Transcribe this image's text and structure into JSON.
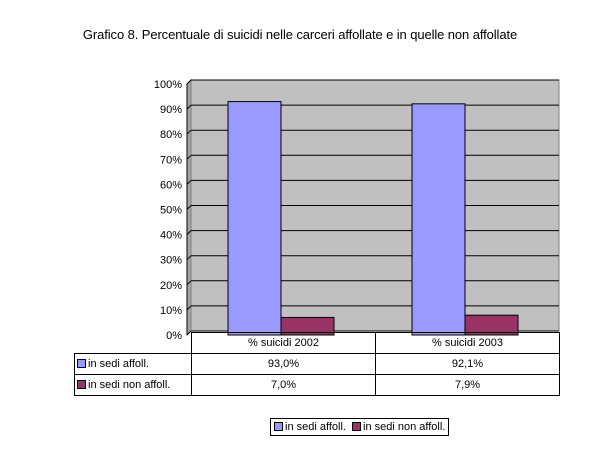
{
  "chart_data": {
    "type": "bar",
    "title": "Grafico 8. Percentuale di suicidi nelle carceri affollate e in quelle non affollate",
    "categories": [
      "% suicidi 2002",
      "% suicidi 2003"
    ],
    "series": [
      {
        "name": "in sedi affoll.",
        "values": [
          93.0,
          92.1
        ],
        "labels": [
          "93,0%",
          "92,1%"
        ],
        "color": "#9999ff"
      },
      {
        "name": "in sedi non affoll.",
        "values": [
          7.0,
          7.9
        ],
        "labels": [
          "7,0%",
          "7,9%"
        ],
        "color": "#993366"
      }
    ],
    "ylim": [
      0,
      100
    ],
    "yticks": [
      "0%",
      "10%",
      "20%",
      "30%",
      "40%",
      "50%",
      "60%",
      "70%",
      "80%",
      "90%",
      "100%"
    ],
    "grid": true,
    "plot_background": "#c0c0c0",
    "legend": "bottom",
    "data_table": true
  }
}
